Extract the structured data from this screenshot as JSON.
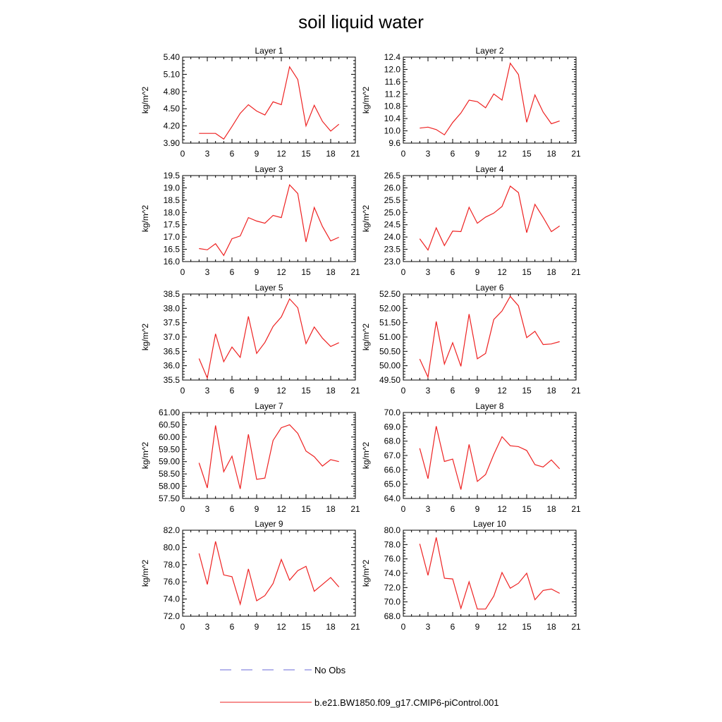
{
  "title": "soil liquid water",
  "legend": {
    "entries": [
      {
        "label": "No Obs",
        "color": "#6a6ad8",
        "dash": true
      },
      {
        "label": "b.e21.BW1850.f09_g17.CMIP6-piControl.001",
        "color": "#ee2222",
        "dash": false
      }
    ]
  },
  "series_color": "#ee2222",
  "chart_data": [
    {
      "type": "line",
      "title": "Layer 1",
      "xlabel": "",
      "ylabel": "kg/m^2",
      "xlim": [
        0,
        21
      ],
      "ylim": [
        3.9,
        5.4
      ],
      "decimals": 2,
      "xticks": [
        0,
        3,
        6,
        9,
        12,
        15,
        18,
        21
      ],
      "yticks": [
        "3.90",
        "4.20",
        "4.50",
        "4.80",
        "5.10",
        "5.40"
      ],
      "x": [
        2,
        3,
        4,
        5,
        6,
        7,
        8,
        9,
        10,
        11,
        12,
        13,
        14,
        15,
        16,
        17,
        18,
        19
      ],
      "y": [
        4.07,
        4.07,
        4.07,
        3.97,
        4.19,
        4.42,
        4.57,
        4.46,
        4.39,
        4.62,
        4.57,
        5.23,
        5.01,
        4.2,
        4.56,
        4.28,
        4.11,
        4.23
      ]
    },
    {
      "type": "line",
      "title": "Layer 2",
      "xlabel": "",
      "ylabel": "kg/m^2",
      "xlim": [
        0,
        21
      ],
      "ylim": [
        9.6,
        12.4
      ],
      "decimals": 1,
      "xticks": [
        0,
        3,
        6,
        9,
        12,
        15,
        18,
        21
      ],
      "yticks": [
        "9.6",
        "10.0",
        "10.4",
        "10.8",
        "11.2",
        "11.6",
        "12.0",
        "12.4"
      ],
      "x": [
        2,
        3,
        4,
        5,
        6,
        7,
        8,
        9,
        10,
        11,
        12,
        13,
        14,
        15,
        16,
        17,
        18,
        19
      ],
      "y": [
        10.09,
        10.12,
        10.04,
        9.87,
        10.27,
        10.58,
        11.0,
        10.95,
        10.75,
        11.2,
        11.0,
        12.2,
        11.83,
        10.28,
        11.17,
        10.61,
        10.23,
        10.32
      ]
    },
    {
      "type": "line",
      "title": "Layer 3",
      "xlabel": "",
      "ylabel": "kg/m^2",
      "xlim": [
        0,
        21
      ],
      "ylim": [
        16.0,
        19.5
      ],
      "decimals": 1,
      "xticks": [
        0,
        3,
        6,
        9,
        12,
        15,
        18,
        21
      ],
      "yticks": [
        "16.0",
        "16.5",
        "17.0",
        "17.5",
        "18.0",
        "18.5",
        "19.0",
        "19.5"
      ],
      "x": [
        2,
        3,
        4,
        5,
        6,
        7,
        8,
        9,
        10,
        11,
        12,
        13,
        14,
        15,
        16,
        17,
        18,
        19
      ],
      "y": [
        16.53,
        16.48,
        16.73,
        16.25,
        16.93,
        17.04,
        17.79,
        17.65,
        17.56,
        17.88,
        17.79,
        19.12,
        18.77,
        16.8,
        18.2,
        17.43,
        16.84,
        16.99
      ]
    },
    {
      "type": "line",
      "title": "Layer 4",
      "xlabel": "",
      "ylabel": "kg/m^2",
      "xlim": [
        0,
        21
      ],
      "ylim": [
        23.0,
        26.5
      ],
      "decimals": 1,
      "xticks": [
        0,
        3,
        6,
        9,
        12,
        15,
        18,
        21
      ],
      "yticks": [
        "23.0",
        "23.5",
        "24.0",
        "24.5",
        "25.0",
        "25.5",
        "26.0",
        "26.5"
      ],
      "x": [
        2,
        3,
        4,
        5,
        6,
        7,
        8,
        9,
        10,
        11,
        12,
        13,
        14,
        15,
        16,
        17,
        18,
        19
      ],
      "y": [
        23.93,
        23.47,
        24.37,
        23.65,
        24.24,
        24.22,
        25.21,
        24.56,
        24.81,
        24.97,
        25.24,
        26.07,
        25.81,
        24.18,
        25.33,
        24.8,
        24.22,
        24.45
      ]
    },
    {
      "type": "line",
      "title": "Layer 5",
      "xlabel": "",
      "ylabel": "kg/m^2",
      "xlim": [
        0,
        21
      ],
      "ylim": [
        35.5,
        38.5
      ],
      "decimals": 1,
      "xticks": [
        0,
        3,
        6,
        9,
        12,
        15,
        18,
        21
      ],
      "yticks": [
        "35.5",
        "36.0",
        "36.5",
        "37.0",
        "37.5",
        "38.0",
        "38.5"
      ],
      "x": [
        2,
        3,
        4,
        5,
        6,
        7,
        8,
        9,
        10,
        11,
        12,
        13,
        14,
        15,
        16,
        17,
        18,
        19
      ],
      "y": [
        36.25,
        35.57,
        37.11,
        36.14,
        36.65,
        36.29,
        37.72,
        36.43,
        36.81,
        37.37,
        37.7,
        38.33,
        38.02,
        36.77,
        37.35,
        36.96,
        36.67,
        36.8
      ]
    },
    {
      "type": "line",
      "title": "Layer 6",
      "xlabel": "",
      "ylabel": "kg/m^2",
      "xlim": [
        0,
        21
      ],
      "ylim": [
        49.5,
        52.5
      ],
      "decimals": 2,
      "xticks": [
        0,
        3,
        6,
        9,
        12,
        15,
        18,
        21
      ],
      "yticks": [
        "49.50",
        "50.00",
        "50.50",
        "51.00",
        "51.50",
        "52.00",
        "52.50"
      ],
      "x": [
        2,
        3,
        4,
        5,
        6,
        7,
        8,
        9,
        10,
        11,
        12,
        13,
        14,
        15,
        16,
        17,
        18,
        19
      ],
      "y": [
        50.23,
        49.6,
        51.54,
        50.06,
        50.8,
        49.98,
        51.8,
        50.24,
        50.43,
        51.61,
        51.91,
        52.42,
        52.09,
        50.98,
        51.2,
        50.74,
        50.76,
        50.84
      ]
    },
    {
      "type": "line",
      "title": "Layer 7",
      "xlabel": "",
      "ylabel": "kg/m^2",
      "xlim": [
        0,
        21
      ],
      "ylim": [
        57.5,
        61.0
      ],
      "decimals": 2,
      "xticks": [
        0,
        3,
        6,
        9,
        12,
        15,
        18,
        21
      ],
      "yticks": [
        "57.50",
        "58.00",
        "58.50",
        "59.00",
        "59.50",
        "60.00",
        "60.50",
        "61.00"
      ],
      "x": [
        2,
        3,
        4,
        5,
        6,
        7,
        8,
        9,
        10,
        11,
        12,
        13,
        14,
        15,
        16,
        17,
        18,
        19
      ],
      "y": [
        58.95,
        57.93,
        60.47,
        58.59,
        59.22,
        57.89,
        60.11,
        58.28,
        58.33,
        59.86,
        60.38,
        60.5,
        60.15,
        59.43,
        59.2,
        58.82,
        59.08,
        59.0
      ]
    },
    {
      "type": "line",
      "title": "Layer 8",
      "xlabel": "",
      "ylabel": "kg/m^2",
      "xlim": [
        0,
        21
      ],
      "ylim": [
        64.0,
        70.0
      ],
      "decimals": 1,
      "xticks": [
        0,
        3,
        6,
        9,
        12,
        15,
        18,
        21
      ],
      "yticks": [
        "64.0",
        "65.0",
        "66.0",
        "67.0",
        "68.0",
        "69.0",
        "70.0"
      ],
      "x": [
        2,
        3,
        4,
        5,
        6,
        7,
        8,
        9,
        10,
        11,
        12,
        13,
        14,
        15,
        16,
        17,
        18,
        19
      ],
      "y": [
        67.5,
        65.38,
        69.04,
        66.58,
        66.75,
        64.62,
        67.77,
        65.19,
        65.67,
        67.07,
        68.31,
        67.68,
        67.62,
        67.35,
        66.36,
        66.2,
        66.69,
        66.07
      ]
    },
    {
      "type": "line",
      "title": "Layer 9",
      "xlabel": "",
      "ylabel": "kg/m^2",
      "xlim": [
        0,
        21
      ],
      "ylim": [
        72.0,
        82.0
      ],
      "decimals": 1,
      "xticks": [
        0,
        3,
        6,
        9,
        12,
        15,
        18,
        21
      ],
      "yticks": [
        "72.0",
        "74.0",
        "76.0",
        "78.0",
        "80.0",
        "82.0"
      ],
      "x": [
        2,
        3,
        4,
        5,
        6,
        7,
        8,
        9,
        10,
        11,
        12,
        13,
        14,
        15,
        16,
        17,
        18,
        19
      ],
      "y": [
        79.3,
        75.7,
        80.7,
        76.8,
        76.6,
        73.4,
        77.5,
        73.8,
        74.4,
        75.8,
        78.6,
        76.2,
        77.3,
        77.8,
        74.9,
        75.7,
        76.5,
        75.4
      ]
    },
    {
      "type": "line",
      "title": "Layer 10",
      "xlabel": "",
      "ylabel": "kg/m^2",
      "xlim": [
        0,
        21
      ],
      "ylim": [
        68.0,
        80.0
      ],
      "decimals": 1,
      "xticks": [
        0,
        3,
        6,
        9,
        12,
        15,
        18,
        21
      ],
      "yticks": [
        "68.0",
        "70.0",
        "72.0",
        "74.0",
        "76.0",
        "78.0",
        "80.0"
      ],
      "x": [
        2,
        3,
        4,
        5,
        6,
        7,
        8,
        9,
        10,
        11,
        12,
        13,
        14,
        15,
        16,
        17,
        18,
        19
      ],
      "y": [
        78.1,
        73.7,
        79.0,
        73.3,
        73.2,
        69.1,
        72.8,
        69.0,
        69.0,
        70.8,
        74.1,
        71.9,
        72.6,
        74.0,
        70.3,
        71.6,
        71.8,
        71.2
      ]
    }
  ]
}
